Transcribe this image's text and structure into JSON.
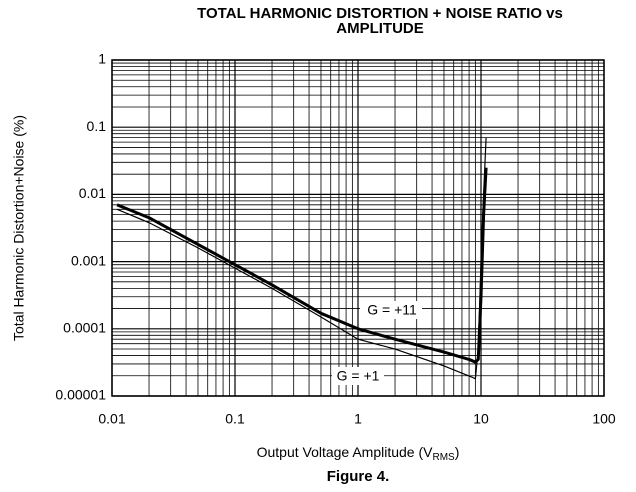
{
  "chart_data": {
    "type": "line",
    "title": [
      "TOTAL HARMONIC DISTORTION + NOISE RATIO vs",
      "AMPLITUDE"
    ],
    "xlabel": [
      "Output Voltage Amplitude (V",
      "RMS",
      ")"
    ],
    "ylabel": "Total Harmonic Distortion+Noise (%)",
    "caption": "Figure 4.",
    "xscale": "log",
    "yscale": "log",
    "xlim": [
      0.01,
      100
    ],
    "ylim": [
      1e-05,
      1
    ],
    "xticks": [
      0.01,
      0.1,
      1,
      10,
      100
    ],
    "yticks": [
      1,
      0.1,
      0.01,
      0.001,
      0.0001,
      1e-05
    ],
    "grid": true,
    "minor_grid": true,
    "series": [
      {
        "name": "G = +11",
        "color": "#000000",
        "width": 3,
        "x": [
          0.011,
          0.02,
          0.05,
          0.1,
          0.2,
          0.5,
          1,
          2,
          5,
          8,
          9,
          9.5,
          10,
          10.5,
          11
        ],
        "values": [
          0.007,
          0.0045,
          0.0018,
          0.0009,
          0.00045,
          0.00017,
          0.0001,
          7e-05,
          4.5e-05,
          3.5e-05,
          3.2e-05,
          3.5e-05,
          0.0003,
          0.005,
          0.025
        ]
      },
      {
        "name": "G = +1",
        "color": "#000000",
        "width": 1.2,
        "x": [
          0.011,
          0.02,
          0.05,
          0.1,
          0.2,
          0.5,
          1,
          2,
          5,
          8.5,
          9,
          9.5,
          10,
          10.5,
          11
        ],
        "values": [
          0.006,
          0.0038,
          0.0016,
          0.0008,
          0.0004,
          0.00015,
          7e-05,
          5e-05,
          2.8e-05,
          1.9e-05,
          1.8e-05,
          5e-05,
          0.001,
          0.01,
          0.07
        ]
      }
    ]
  }
}
